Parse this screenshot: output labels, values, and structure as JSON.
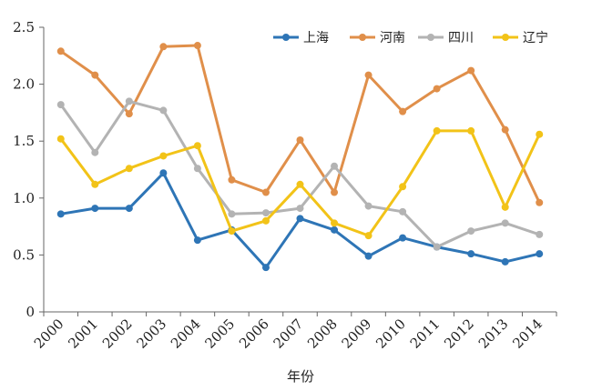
{
  "chart_data": {
    "type": "line",
    "title": "",
    "xlabel": "年份",
    "ylabel": "",
    "ylim": [
      0,
      2.5
    ],
    "y_ticks": [
      "0",
      "0.5",
      "1.0",
      "1.5",
      "2.0",
      "2.5"
    ],
    "y_tick_values": [
      0,
      0.5,
      1.0,
      1.5,
      2.0,
      2.5
    ],
    "categories": [
      "2000",
      "2001",
      "2002",
      "2003",
      "2004",
      "2005",
      "2006",
      "2007",
      "2008",
      "2009",
      "2010",
      "2011",
      "2012",
      "2013",
      "2014"
    ],
    "grid": false,
    "legend_position": "top-right",
    "series": [
      {
        "name": "上海",
        "color": "#2e75b6",
        "values": [
          0.86,
          0.91,
          0.91,
          1.22,
          0.63,
          0.72,
          0.39,
          0.82,
          0.72,
          0.49,
          0.65,
          0.57,
          0.51,
          0.44,
          0.51
        ]
      },
      {
        "name": "河南",
        "color": "#e08f4a",
        "values": [
          2.29,
          2.08,
          1.74,
          2.33,
          2.34,
          1.16,
          1.05,
          1.51,
          1.05,
          2.08,
          1.76,
          1.96,
          2.12,
          1.6,
          0.96
        ]
      },
      {
        "name": "四川",
        "color": "#b3b3b3",
        "values": [
          1.82,
          1.4,
          1.85,
          1.77,
          1.26,
          0.86,
          0.87,
          0.91,
          1.28,
          0.93,
          0.88,
          0.57,
          0.71,
          0.78,
          0.68
        ]
      },
      {
        "name": "辽宁",
        "color": "#f2c318",
        "values": [
          1.52,
          1.12,
          1.26,
          1.37,
          1.46,
          0.71,
          0.8,
          1.12,
          0.78,
          0.67,
          1.1,
          1.59,
          1.59,
          0.92,
          1.56
        ]
      }
    ]
  }
}
